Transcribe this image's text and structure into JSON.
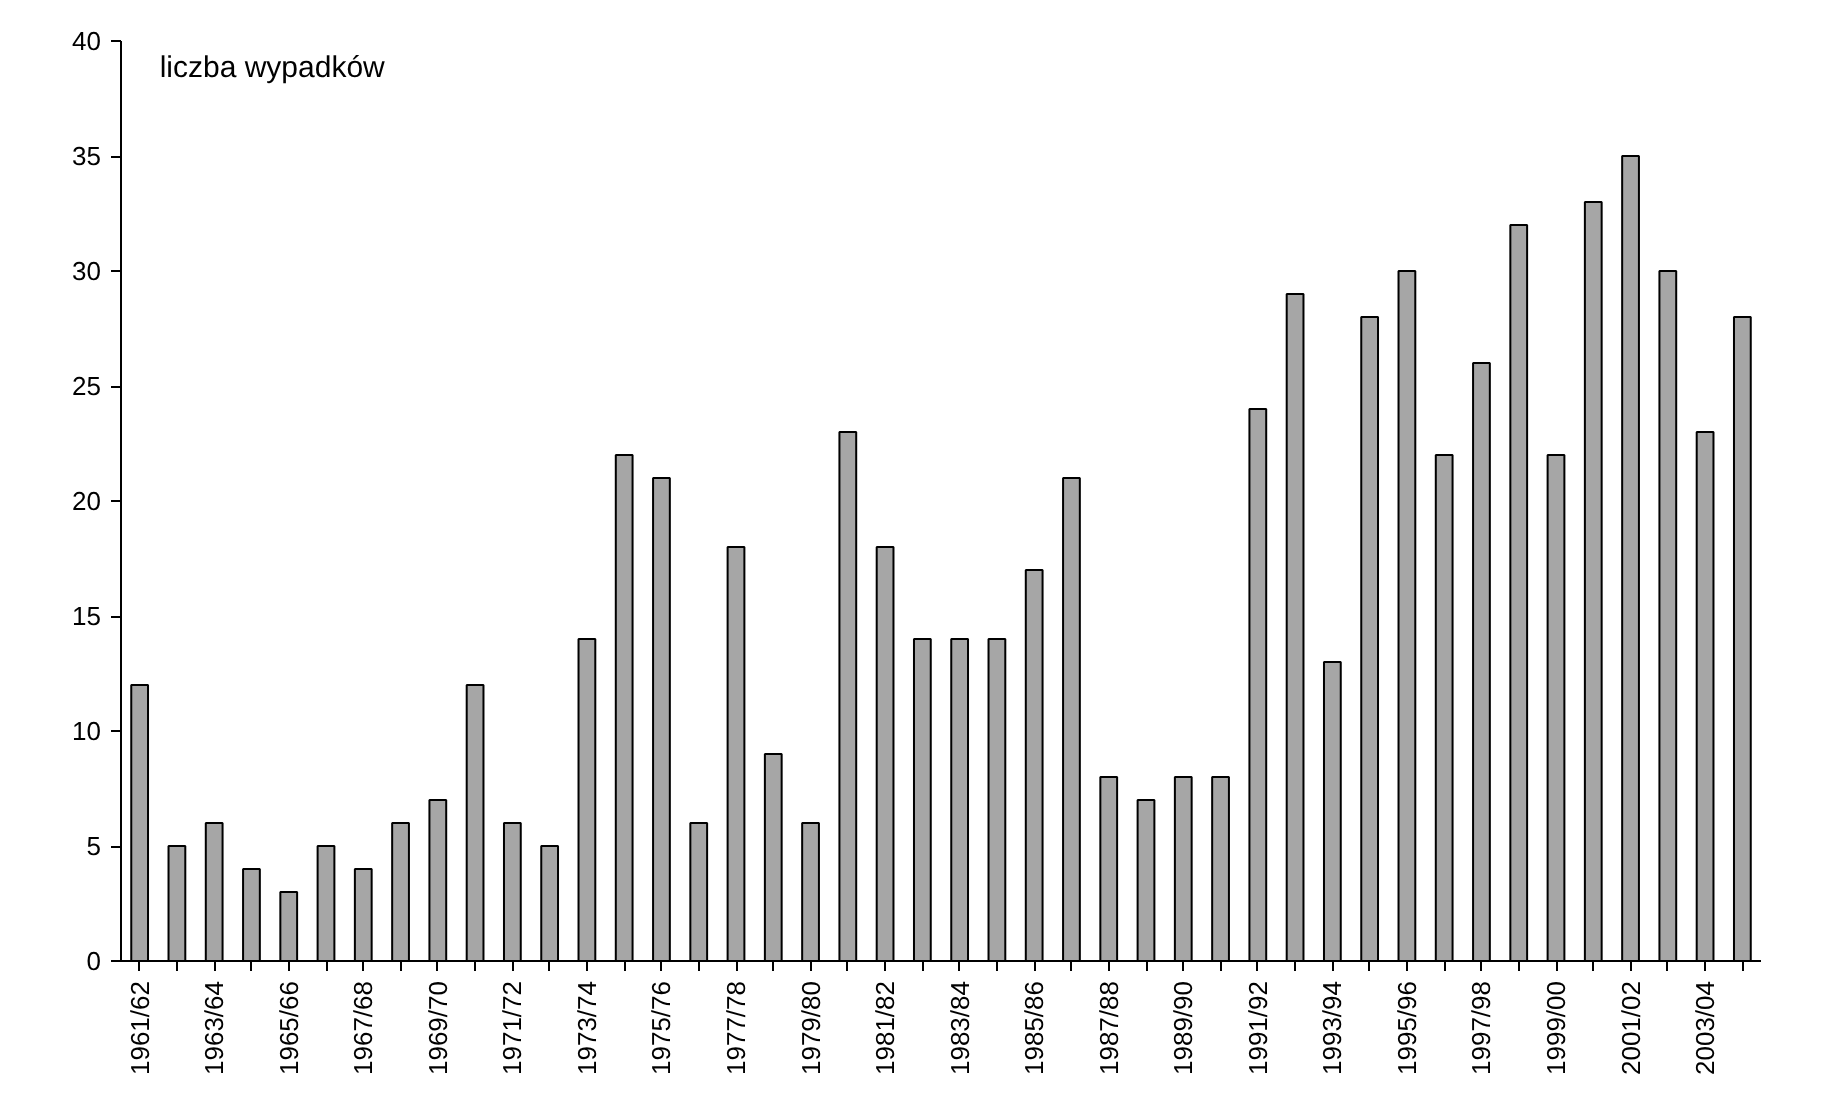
{
  "chart_data": {
    "type": "bar",
    "ylabel": "liczba wypadków",
    "categories": [
      "1961/62",
      null,
      "1963/64",
      null,
      "1965/66",
      null,
      "1967/68",
      null,
      "1969/70",
      null,
      "1971/72",
      null,
      "1973/74",
      null,
      "1975/76",
      null,
      "1977/78",
      null,
      "1979/80",
      null,
      "1981/82",
      null,
      "1983/84",
      null,
      "1985/86",
      null,
      "1987/88",
      null,
      "1989/90",
      null,
      "1991/92",
      null,
      "1993/94",
      null,
      "1995/96",
      null,
      "1997/98",
      null,
      "1999/00",
      null,
      "2001/02",
      null,
      "2003/04",
      null
    ],
    "values": [
      12,
      5,
      6,
      4,
      3,
      5,
      4,
      6,
      7,
      12,
      6,
      5,
      14,
      22,
      21,
      6,
      18,
      9,
      6,
      23,
      18,
      14,
      14,
      14,
      17,
      21,
      8,
      7,
      8,
      8,
      24,
      29,
      13,
      28,
      30,
      22,
      26,
      32,
      22,
      33,
      35,
      30,
      23,
      28
    ],
    "color": "#a6a6a6",
    "ylim": [
      0,
      40
    ],
    "yticks": [
      0,
      5,
      10,
      15,
      20,
      25,
      30,
      35,
      40
    ],
    "grid": false
  }
}
